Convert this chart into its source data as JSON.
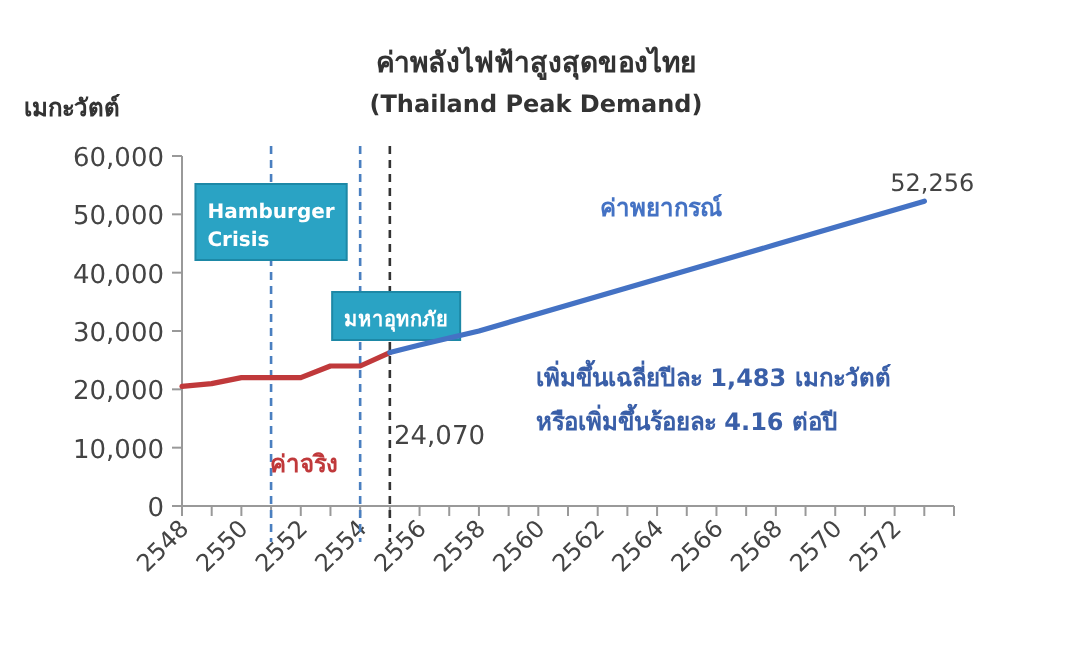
{
  "chart_data": {
    "type": "line",
    "title": "ค่าพลังไฟฟ้าสูงสุดของไทย",
    "subtitle": "(Thailand Peak Demand)",
    "ylabel": "เมกะวัตต์",
    "xlim": [
      2548,
      2574
    ],
    "ylim": [
      0,
      60000
    ],
    "xticks": [
      2548,
      {
        "value": 2549,
        "label": null
      },
      2550,
      {
        "value": 2551,
        "label": null
      },
      2552,
      {
        "value": 2553,
        "label": null
      },
      2554,
      {
        "value": 2555,
        "label": null
      },
      2556,
      {
        "value": 2557,
        "label": null
      },
      2558,
      {
        "value": 2559,
        "label": null
      },
      2560,
      {
        "value": 2561,
        "label": null
      },
      2562,
      {
        "value": 2563,
        "label": null
      },
      2564,
      {
        "value": 2565,
        "label": null
      },
      2566,
      {
        "value": 2567,
        "label": null
      },
      2568,
      {
        "value": 2569,
        "label": null
      },
      2570,
      {
        "value": 2571,
        "label": null
      },
      2572,
      {
        "value": 2573,
        "label": null
      },
      {
        "value": 2574,
        "label": null
      }
    ],
    "yticks": [
      {
        "value": 0,
        "label": "0"
      },
      {
        "value": 10000,
        "label": "10,000"
      },
      {
        "value": 20000,
        "label": "20,000"
      },
      {
        "value": 30000,
        "label": "30,000"
      },
      {
        "value": 40000,
        "label": "40,000"
      },
      {
        "value": 50000,
        "label": "50,000"
      },
      {
        "value": 60000,
        "label": "60,000"
      }
    ],
    "series": [
      {
        "name": "ค่าจริง",
        "color": "#c0393b",
        "x": [
          2548,
          2549,
          2550,
          2551,
          2552,
          2553,
          2554,
          2555
        ],
        "values": [
          20500,
          21000,
          22000,
          22000,
          22000,
          24000,
          24000,
          26300
        ]
      },
      {
        "name": "ค่าพยากรณ์",
        "color": "#4472c4",
        "x": [
          2555,
          2556,
          2557,
          2558,
          2563,
          2568,
          2573
        ],
        "values": [
          26300,
          27600,
          28800,
          30000,
          37400,
          44800,
          52256
        ]
      }
    ],
    "ref_lines": [
      {
        "axis": "x",
        "value": 2551,
        "label": "Hamburger Crisis",
        "color": "#4a7fc0",
        "line_style": "dashed"
      },
      {
        "axis": "x",
        "value": 2554,
        "label": "มหาอุทกภัย",
        "color": "#4a7fc0",
        "line_style": "dashed"
      },
      {
        "axis": "x",
        "value": 2555,
        "color": "#333333",
        "line_style": "dashed"
      }
    ],
    "annotations": [
      {
        "text": "52,256",
        "x": 2573,
        "y": 52256
      },
      "24,070",
      "เพิ่มขึ้นเฉลี่ยปีละ 1,483 เมกะวัตต์",
      "หรือเพิ่มขึ้นร้อยละ 4.16 ต่อปี"
    ],
    "line_style": "solid",
    "marker": "none",
    "grid": false
  }
}
